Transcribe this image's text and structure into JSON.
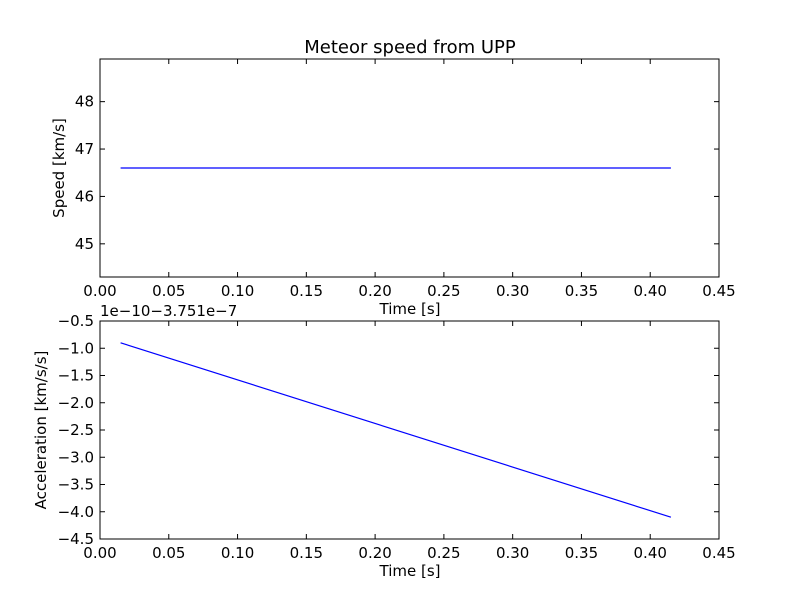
{
  "chart_data": [
    {
      "type": "line",
      "title": "Meteor speed from  UPP",
      "xlabel": "Time [s]",
      "ylabel": "Speed [km/s]",
      "xlim": [
        0.0,
        0.45
      ],
      "ylim": [
        44.3,
        48.9
      ],
      "xticks": [
        "0.00",
        "0.05",
        "0.10",
        "0.15",
        "0.20",
        "0.25",
        "0.30",
        "0.35",
        "0.40",
        "0.45"
      ],
      "yticks": [
        {
          "value": 45,
          "label": "45"
        },
        {
          "value": 46,
          "label": "46"
        },
        {
          "value": 47,
          "label": "47"
        },
        {
          "value": 48,
          "label": "48"
        }
      ],
      "grid": false,
      "series": [
        {
          "color": "#0000ff",
          "x": [
            0.015,
            0.415
          ],
          "y": [
            46.6,
            46.6
          ]
        }
      ]
    },
    {
      "type": "line",
      "xlabel": "Time [s]",
      "ylabel": "Acceleration [km/s/s]",
      "offset_text": "1e−10−3.751e−7",
      "xlim": [
        0.0,
        0.45
      ],
      "ylim": [
        -4.5,
        -0.5
      ],
      "xticks": [
        "0.00",
        "0.05",
        "0.10",
        "0.15",
        "0.20",
        "0.25",
        "0.30",
        "0.35",
        "0.40",
        "0.45"
      ],
      "yticks": [
        {
          "value": -0.5,
          "label": "−0.5"
        },
        {
          "value": -1.0,
          "label": "−1.0"
        },
        {
          "value": -1.5,
          "label": "−1.5"
        },
        {
          "value": -2.0,
          "label": "−2.0"
        },
        {
          "value": -2.5,
          "label": "−2.5"
        },
        {
          "value": -3.0,
          "label": "−3.0"
        },
        {
          "value": -3.5,
          "label": "−3.5"
        },
        {
          "value": -4.0,
          "label": "−4.0"
        },
        {
          "value": -4.5,
          "label": "−4.5"
        }
      ],
      "grid": false,
      "series": [
        {
          "color": "#0000ff",
          "x": [
            0.015,
            0.415
          ],
          "y": [
            -0.9,
            -4.1
          ]
        }
      ]
    }
  ]
}
